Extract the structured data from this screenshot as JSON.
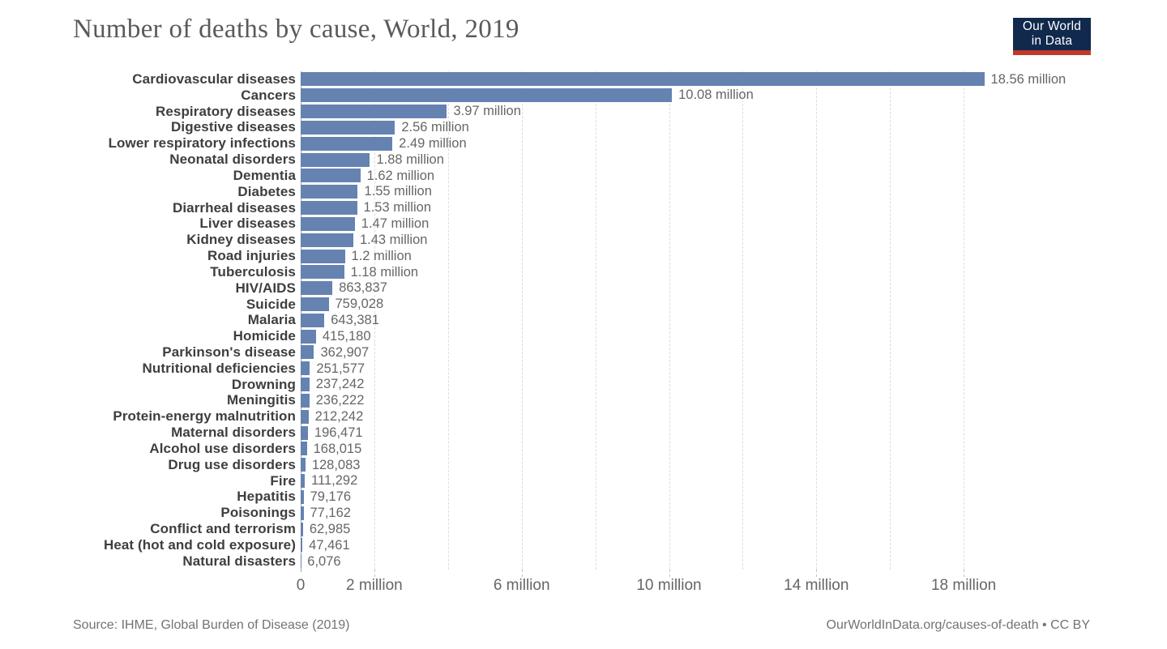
{
  "logo": {
    "line1": "Our World",
    "line2": "in Data",
    "bg_color": "#10294c",
    "stripe_color": "#c0392b"
  },
  "chart_data": {
    "type": "bar",
    "orientation": "horizontal",
    "title": "Number of deaths by cause, World, 2019",
    "bar_color": "#6582b1",
    "categories": [
      "Cardiovascular diseases",
      "Cancers",
      "Respiratory diseases",
      "Digestive diseases",
      "Lower respiratory infections",
      "Neonatal disorders",
      "Dementia",
      "Diabetes",
      "Diarrheal diseases",
      "Liver diseases",
      "Kidney diseases",
      "Road injuries",
      "Tuberculosis",
      "HIV/AIDS",
      "Suicide",
      "Malaria",
      "Homicide",
      "Parkinson's disease",
      "Nutritional deficiencies",
      "Drowning",
      "Meningitis",
      "Protein-energy malnutrition",
      "Maternal disorders",
      "Alcohol use disorders",
      "Drug use disorders",
      "Fire",
      "Hepatitis",
      "Poisonings",
      "Conflict and terrorism",
      "Heat (hot and cold exposure)",
      "Natural disasters"
    ],
    "values": [
      18560000,
      10080000,
      3970000,
      2560000,
      2490000,
      1880000,
      1620000,
      1550000,
      1530000,
      1470000,
      1430000,
      1200000,
      1180000,
      863837,
      759028,
      643381,
      415180,
      362907,
      251577,
      237242,
      236222,
      212242,
      196471,
      168015,
      128083,
      111292,
      79176,
      77162,
      62985,
      47461,
      6076
    ],
    "value_labels": [
      "18.56 million",
      "10.08 million",
      "3.97 million",
      "2.56 million",
      "2.49 million",
      "1.88 million",
      "1.62 million",
      "1.55 million",
      "1.53 million",
      "1.47 million",
      "1.43 million",
      "1.2 million",
      "1.18 million",
      "863,837",
      "759,028",
      "643,381",
      "415,180",
      "362,907",
      "251,577",
      "237,242",
      "236,222",
      "212,242",
      "196,471",
      "168,015",
      "128,083",
      "111,292",
      "79,176",
      "77,162",
      "62,985",
      "47,461",
      "6,076"
    ],
    "xlim_millions": [
      0,
      18.56
    ],
    "gridlines_millions": [
      2,
      4,
      6,
      8,
      10,
      12,
      14,
      16,
      18
    ],
    "x_ticks": [
      {
        "m": 0,
        "label": "0"
      },
      {
        "m": 2,
        "label": "2 million"
      },
      {
        "m": 6,
        "label": "6 million"
      },
      {
        "m": 10,
        "label": "10 million"
      },
      {
        "m": 14,
        "label": "14 million"
      },
      {
        "m": 18,
        "label": "18 million"
      }
    ],
    "grid": true,
    "legend": "none"
  },
  "footer": {
    "source": "Source: IHME, Global Burden of Disease (2019)",
    "link": "OurWorldInData.org/causes-of-death • CC BY"
  }
}
